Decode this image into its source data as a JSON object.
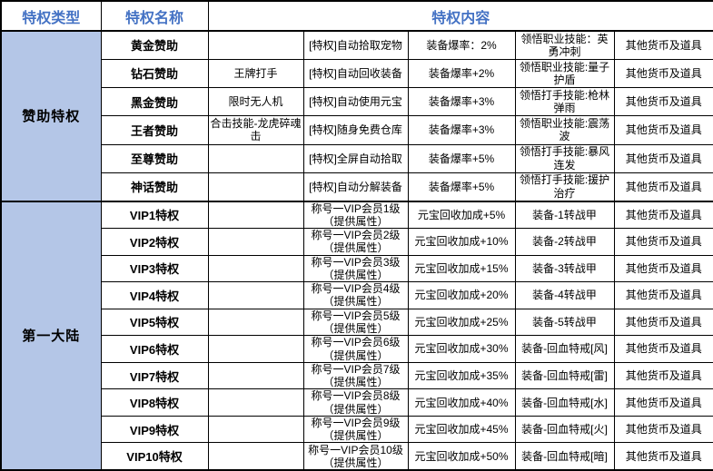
{
  "table": {
    "header": {
      "col_type": "特权类型",
      "col_name": "特权名称",
      "col_content": "特权内容"
    },
    "colors": {
      "header_text": "#4472C4",
      "type_cell_bg": "#B4C6E7",
      "border": "#000000",
      "body_text": "#000000"
    },
    "groups": [
      {
        "type": "赞助特权",
        "rows": [
          {
            "name": "黄金赞助",
            "cells": [
              "",
              "[特权]自动拾取宠物",
              "装备爆率：2%",
              "领悟职业技能：英勇冲刺",
              "其他货币及道具"
            ]
          },
          {
            "name": "钻石赞助",
            "cells": [
              "王牌打手",
              "[特权]自动回收装备",
              "装备爆率+2%",
              "领悟职业技能:量子护盾",
              "其他货币及道具"
            ]
          },
          {
            "name": "黑金赞助",
            "cells": [
              "限时无人机",
              "[特权]自动使用元宝",
              "装备爆率+3%",
              "领悟打手技能:枪林弹雨",
              "其他货币及道具"
            ]
          },
          {
            "name": "王者赞助",
            "cells": [
              "合击技能-龙虎碎魂击",
              "[特权]随身免费仓库",
              "装备爆率+3%",
              "领悟职业技能:震荡波",
              "其他货币及道具"
            ]
          },
          {
            "name": "至尊赞助",
            "cells": [
              "",
              "[特权]全屏自动拾取",
              "装备爆率+5%",
              "领悟打手技能:暴风连发",
              "其他货币及道具"
            ]
          },
          {
            "name": "神话赞助",
            "cells": [
              "",
              "[特权]自动分解装备",
              "装备爆率+5%",
              "领悟打手技能:援护治疗",
              "其他货币及道具"
            ]
          }
        ]
      },
      {
        "type": "第一大陆",
        "rows": [
          {
            "name": "VIP1特权",
            "cells": [
              "",
              "称号一VIP会员1级（提供属性）",
              "元宝回收加成+5%",
              "装备-1转战甲",
              "其他货币及道具"
            ]
          },
          {
            "name": "VIP2特权",
            "cells": [
              "",
              "称号一VIP会员2级（提供属性）",
              "元宝回收加成+10%",
              "装备-2转战甲",
              "其他货币及道具"
            ]
          },
          {
            "name": "VIP3特权",
            "cells": [
              "",
              "称号一VIP会员3级（提供属性）",
              "元宝回收加成+15%",
              "装备-3转战甲",
              "其他货币及道具"
            ]
          },
          {
            "name": "VIP4特权",
            "cells": [
              "",
              "称号一VIP会员4级（提供属性）",
              "元宝回收加成+20%",
              "装备-4转战甲",
              "其他货币及道具"
            ]
          },
          {
            "name": "VIP5特权",
            "cells": [
              "",
              "称号一VIP会员5级（提供属性）",
              "元宝回收加成+25%",
              "装备-5转战甲",
              "其他货币及道具"
            ]
          },
          {
            "name": "VIP6特权",
            "cells": [
              "",
              "称号一VIP会员6级（提供属性）",
              "元宝回收加成+30%",
              "装备-回血特戒[风]",
              "其他货币及道具"
            ]
          },
          {
            "name": "VIP7特权",
            "cells": [
              "",
              "称号一VIP会员7级（提供属性）",
              "元宝回收加成+35%",
              "装备-回血特戒[雷]",
              "其他货币及道具"
            ]
          },
          {
            "name": "VIP8特权",
            "cells": [
              "",
              "称号一VIP会员8级（提供属性）",
              "元宝回收加成+40%",
              "装备-回血特戒[水]",
              "其他货币及道具"
            ]
          },
          {
            "name": "VIP9特权",
            "cells": [
              "",
              "称号一VIP会员9级（提供属性）",
              "元宝回收加成+45%",
              "装备-回血特戒[火]",
              "其他货币及道具"
            ]
          },
          {
            "name": "VIP10特权",
            "cells": [
              "",
              "称号一VIP会员10级（提供属性）",
              "元宝回收加成+50%",
              "装备-回血特戒[暗]",
              "其他货币及道具"
            ]
          }
        ]
      }
    ]
  }
}
